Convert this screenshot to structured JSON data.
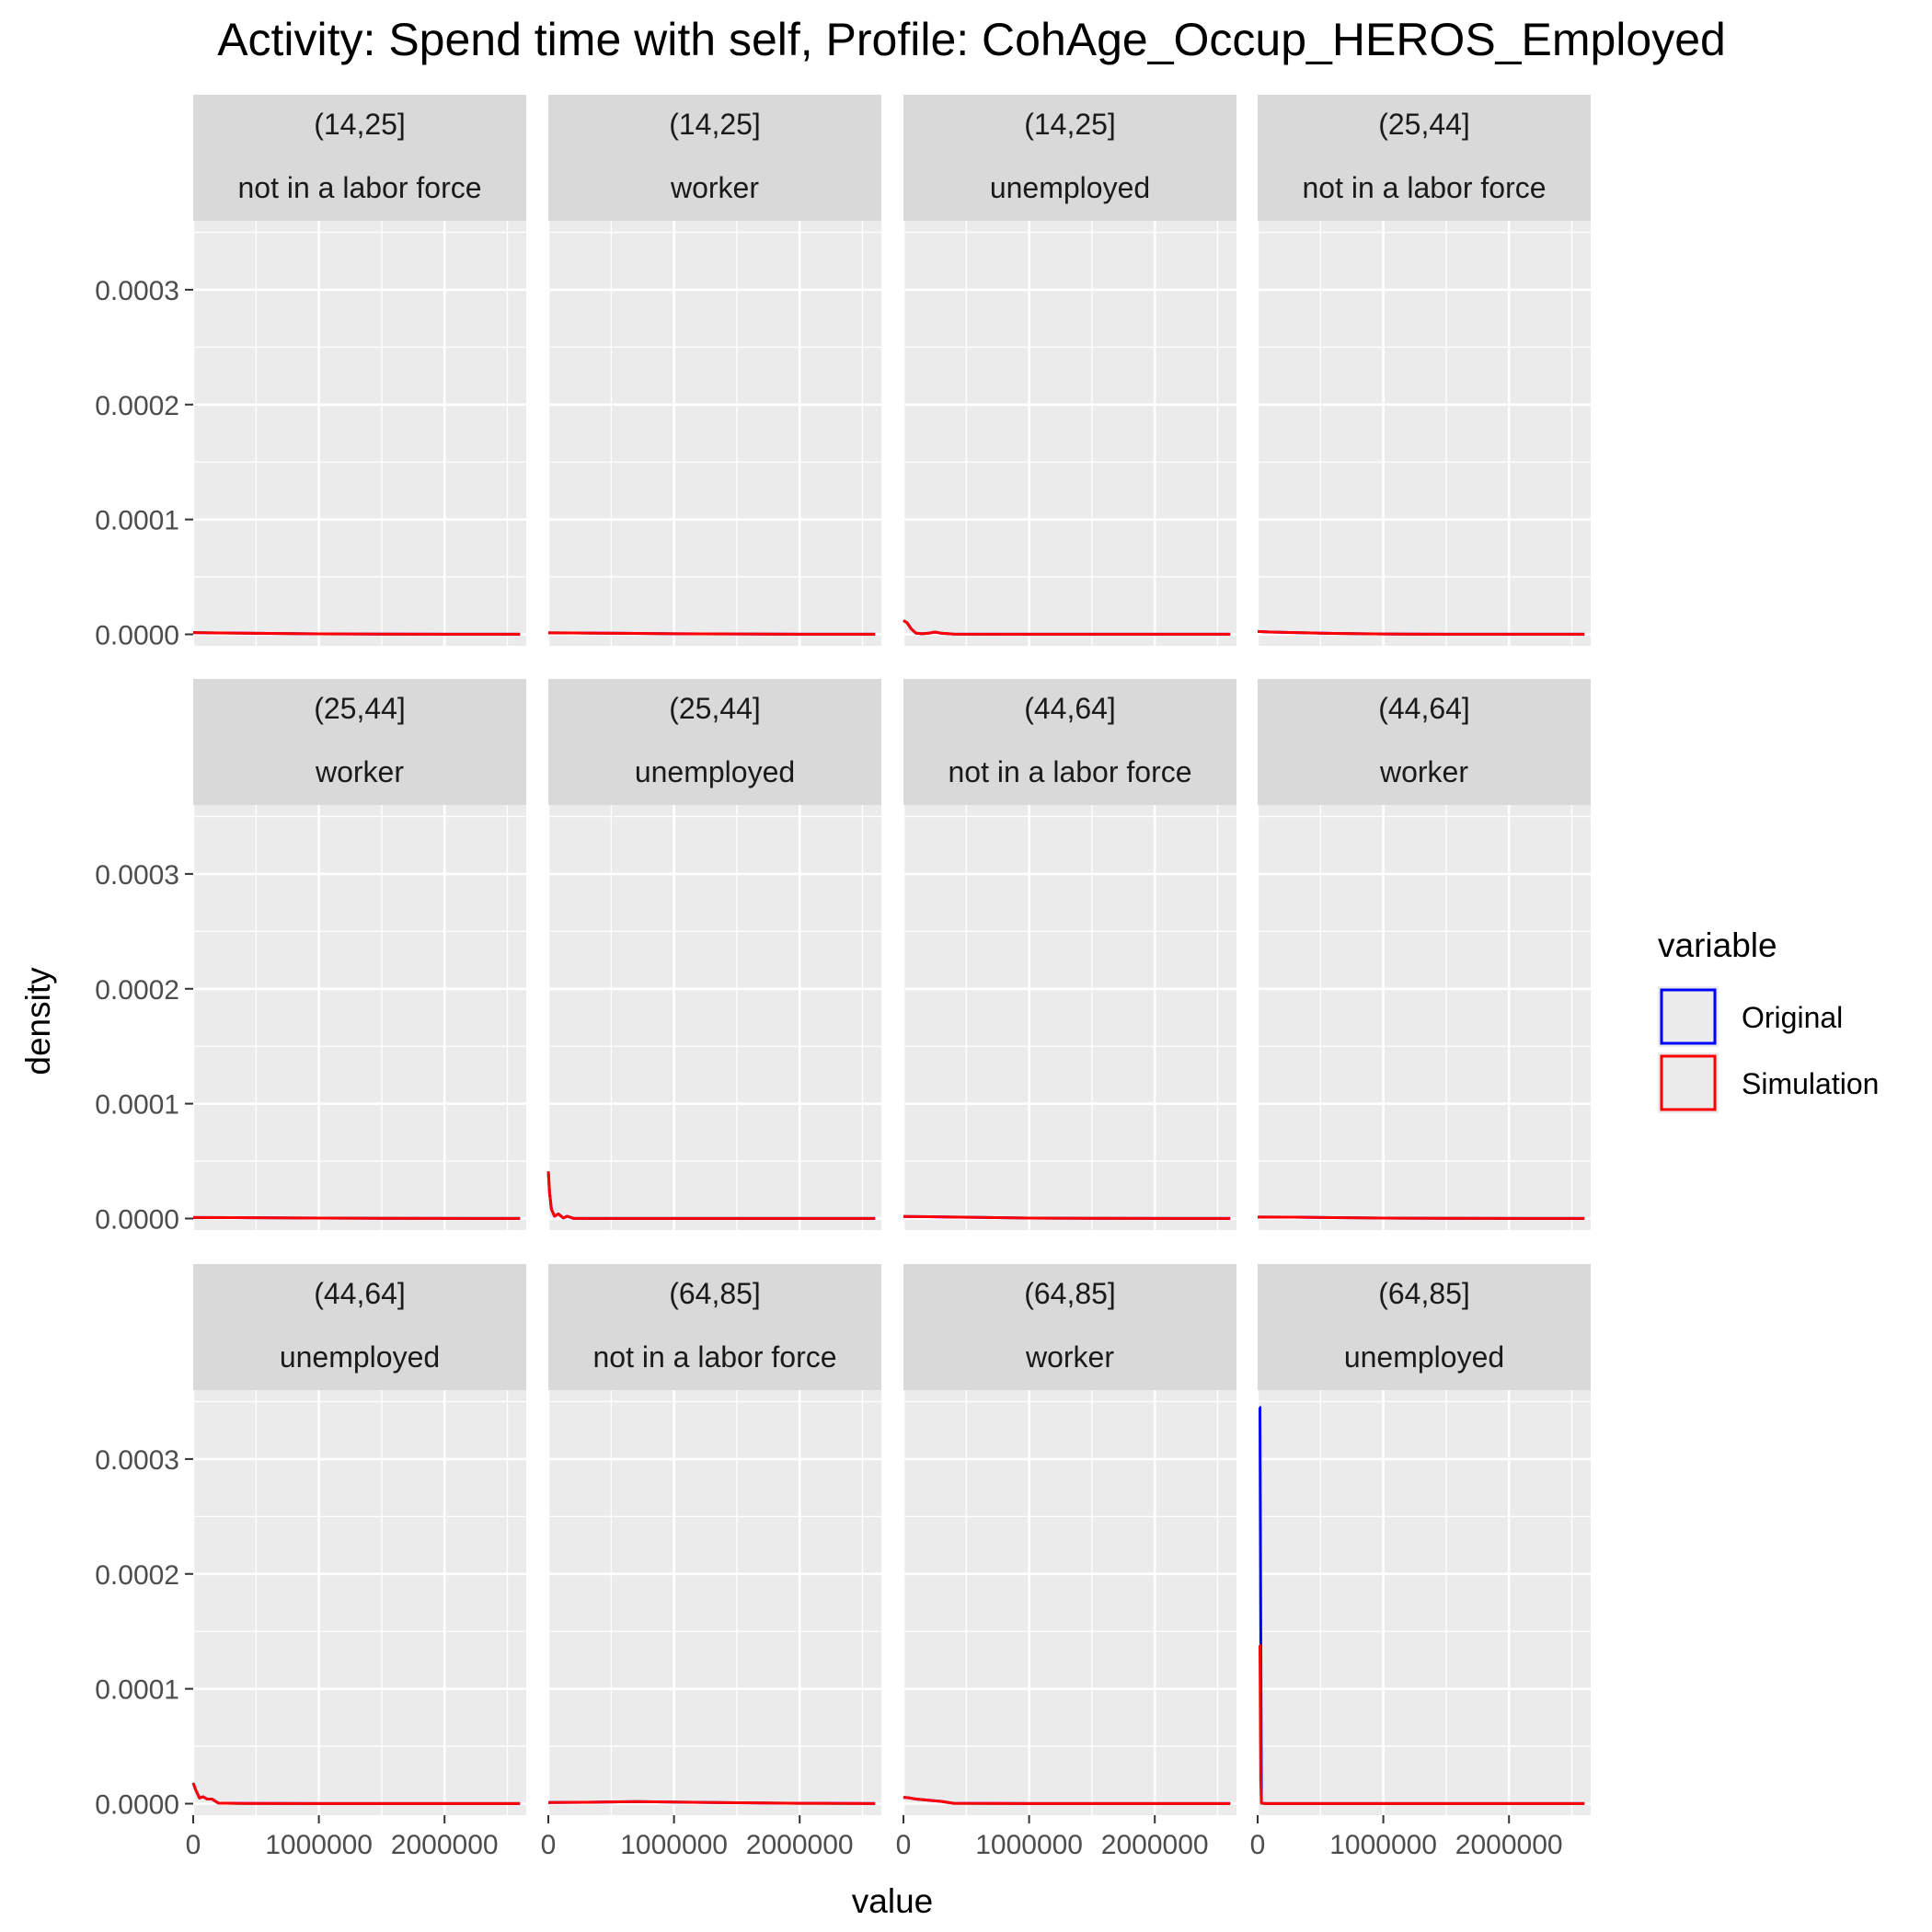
{
  "chart_data": {
    "type": "line",
    "title": "Activity: Spend time with self, Profile: CohAge_Occup_HEROS_Employed",
    "xlabel": "value",
    "ylabel": "density",
    "xlim": [
      0,
      2650000
    ],
    "ylim": [
      -1e-05,
      0.00036
    ],
    "x_ticks": [
      0,
      1000000,
      2000000
    ],
    "x_tick_labels": [
      "0",
      "1000000",
      "2000000"
    ],
    "y_ticks": [
      0,
      0.0001,
      0.0002,
      0.0003
    ],
    "y_tick_labels": [
      "0.0000",
      "0.0001",
      "0.0002",
      "0.0003"
    ],
    "grid": true,
    "legend": {
      "title": "variable",
      "position": "right",
      "entries": [
        {
          "label": "Original",
          "color": "#0000ff"
        },
        {
          "label": "Simulation",
          "color": "#ff0000"
        }
      ]
    },
    "facets": [
      {
        "age": "(14,25]",
        "occupation": "not in a labor force",
        "series": [
          {
            "name": "Original",
            "x": [
              0,
              200000,
              600000,
              1000000,
              1500000,
              2000000,
              2600000
            ],
            "y": [
              1.5e-06,
              1.2e-06,
              8e-07,
              4e-07,
              2e-07,
              1e-07,
              1e-07
            ]
          },
          {
            "name": "Simulation",
            "x": [
              0,
              200000,
              600000,
              1000000,
              1500000,
              2000000,
              2600000
            ],
            "y": [
              1.5e-06,
              1.2e-06,
              8e-07,
              4e-07,
              2e-07,
              1e-07,
              1e-07
            ]
          }
        ]
      },
      {
        "age": "(14,25]",
        "occupation": "worker",
        "series": [
          {
            "name": "Original",
            "x": [
              0,
              200000,
              600000,
              1000000,
              1500000,
              2000000,
              2600000
            ],
            "y": [
              1.3e-06,
              1.2e-06,
              9e-07,
              5e-07,
              3e-07,
              1e-07,
              1e-07
            ]
          },
          {
            "name": "Simulation",
            "x": [
              0,
              200000,
              600000,
              1000000,
              1500000,
              2000000,
              2600000
            ],
            "y": [
              1.3e-06,
              1.2e-06,
              9e-07,
              5e-07,
              3e-07,
              1e-07,
              1e-07
            ]
          }
        ]
      },
      {
        "age": "(14,25]",
        "occupation": "unemployed",
        "series": [
          {
            "name": "Original",
            "x": [
              0,
              30000,
              60000,
              100000,
              150000,
              200000,
              250000,
              300000,
              400000,
              1000000,
              2600000
            ],
            "y": [
              1.2e-05,
              1e-05,
              5e-06,
              1e-06,
              5e-07,
              1e-06,
              2e-06,
              1e-06,
              2e-07,
              1e-07,
              1e-07
            ]
          },
          {
            "name": "Simulation",
            "x": [
              0,
              30000,
              60000,
              100000,
              150000,
              200000,
              250000,
              300000,
              400000,
              1000000,
              2600000
            ],
            "y": [
              1.2e-05,
              1e-05,
              5e-06,
              1e-06,
              5e-07,
              1e-06,
              2e-06,
              1e-06,
              2e-07,
              1e-07,
              1e-07
            ]
          }
        ]
      },
      {
        "age": "(25,44]",
        "occupation": "not in a labor force",
        "series": [
          {
            "name": "Original",
            "x": [
              0,
              100000,
              300000,
              600000,
              1000000,
              1500000,
              2600000
            ],
            "y": [
              2.5e-06,
              2e-06,
              1.5e-06,
              8e-07,
              3e-07,
              1e-07,
              1e-07
            ]
          },
          {
            "name": "Simulation",
            "x": [
              0,
              100000,
              300000,
              600000,
              1000000,
              1500000,
              2600000
            ],
            "y": [
              2.5e-06,
              2e-06,
              1.5e-06,
              8e-07,
              3e-07,
              1e-07,
              1e-07
            ]
          }
        ]
      },
      {
        "age": "(25,44]",
        "occupation": "worker",
        "series": [
          {
            "name": "Original",
            "x": [
              0,
              300000,
              800000,
              1500000,
              2600000
            ],
            "y": [
              9e-07,
              8e-07,
              5e-07,
              2e-07,
              1e-07
            ]
          },
          {
            "name": "Simulation",
            "x": [
              0,
              300000,
              800000,
              1500000,
              2600000
            ],
            "y": [
              9e-07,
              8e-07,
              5e-07,
              2e-07,
              1e-07
            ]
          }
        ]
      },
      {
        "age": "(25,44]",
        "occupation": "unemployed",
        "series": [
          {
            "name": "Original",
            "x": [
              0,
              10000,
              25000,
              50000,
              80000,
              120000,
              150000,
              200000,
              400000,
              1000000,
              2600000
            ],
            "y": [
              4.1e-05,
              2.2e-05,
              8e-06,
              2e-06,
              4e-06,
              5e-07,
              2e-06,
              2e-07,
              1e-07,
              1e-07,
              1e-07
            ]
          },
          {
            "name": "Simulation",
            "x": [
              0,
              10000,
              25000,
              50000,
              80000,
              120000,
              150000,
              200000,
              400000,
              1000000,
              2600000
            ],
            "y": [
              4.1e-05,
              2.2e-05,
              8e-06,
              2e-06,
              4e-06,
              5e-07,
              2e-06,
              2e-07,
              1e-07,
              1e-07,
              1e-07
            ]
          }
        ]
      },
      {
        "age": "(44,64]",
        "occupation": "not in a labor force",
        "series": [
          {
            "name": "Original",
            "x": [
              0,
              200000,
              600000,
              1000000,
              1500000,
              2600000
            ],
            "y": [
              1.8e-06,
              1.6e-06,
              1e-06,
              4e-07,
              2e-07,
              1e-07
            ]
          },
          {
            "name": "Simulation",
            "x": [
              0,
              200000,
              600000,
              1000000,
              1500000,
              2600000
            ],
            "y": [
              1.8e-06,
              1.6e-06,
              1e-06,
              4e-07,
              2e-07,
              1e-07
            ]
          }
        ]
      },
      {
        "age": "(44,64]",
        "occupation": "worker",
        "series": [
          {
            "name": "Original",
            "x": [
              0,
              300000,
              600000,
              1000000,
              1500000,
              2600000
            ],
            "y": [
              1.3e-06,
              1.2e-06,
              8e-07,
              4e-07,
              2e-07,
              1e-07
            ]
          },
          {
            "name": "Simulation",
            "x": [
              0,
              300000,
              600000,
              1000000,
              1500000,
              2600000
            ],
            "y": [
              1.3e-06,
              1.2e-06,
              8e-07,
              4e-07,
              2e-07,
              1e-07
            ]
          }
        ]
      },
      {
        "age": "(44,64]",
        "occupation": "unemployed",
        "series": [
          {
            "name": "Original",
            "x": [
              0,
              20000,
              50000,
              80000,
              110000,
              150000,
              200000,
              400000,
              1000000,
              2600000
            ],
            "y": [
              1.8e-05,
              1.2e-05,
              5e-06,
              6e-06,
              4e-06,
              4e-06,
              5e-07,
              2e-07,
              1e-07,
              1e-07
            ]
          },
          {
            "name": "Simulation",
            "x": [
              0,
              20000,
              50000,
              80000,
              110000,
              150000,
              200000,
              400000,
              1000000,
              2600000
            ],
            "y": [
              1.8e-05,
              1.2e-05,
              5e-06,
              6e-06,
              4e-06,
              4e-06,
              5e-07,
              2e-07,
              1e-07,
              1e-07
            ]
          }
        ]
      },
      {
        "age": "(64,85]",
        "occupation": "not in a labor force",
        "series": [
          {
            "name": "Original",
            "x": [
              0,
              300000,
              700000,
              1000000,
              1500000,
              2000000,
              2600000
            ],
            "y": [
              1e-06,
              1.2e-06,
              1.8e-06,
              1.4e-06,
              8e-07,
              3e-07,
              1e-07
            ]
          },
          {
            "name": "Simulation",
            "x": [
              0,
              300000,
              700000,
              1000000,
              1500000,
              2000000,
              2600000
            ],
            "y": [
              1e-06,
              1.2e-06,
              1.8e-06,
              1.4e-06,
              8e-07,
              3e-07,
              1e-07
            ]
          }
        ]
      },
      {
        "age": "(64,85]",
        "occupation": "worker",
        "series": [
          {
            "name": "Original",
            "x": [
              0,
              50000,
              100000,
              200000,
              300000,
              400000,
              1000000,
              2600000
            ],
            "y": [
              5.5e-06,
              5e-06,
              4e-06,
              3e-06,
              2e-06,
              3e-07,
              1e-07,
              1e-07
            ]
          },
          {
            "name": "Simulation",
            "x": [
              0,
              50000,
              100000,
              200000,
              300000,
              400000,
              1000000,
              2600000
            ],
            "y": [
              5.5e-06,
              5e-06,
              4e-06,
              3e-06,
              2e-06,
              3e-07,
              1e-07,
              1e-07
            ]
          }
        ]
      },
      {
        "age": "(64,85]",
        "occupation": "unemployed",
        "series": [
          {
            "name": "Original",
            "x": [
              15000,
              18000,
              30000,
              60000,
              1000000,
              2600000
            ],
            "y": [
              0.000345,
              0.000345,
              5e-07,
              1e-07,
              1e-07,
              1e-07
            ]
          },
          {
            "name": "Simulation",
            "x": [
              15000,
              18000,
              25000,
              30000,
              60000,
              1000000,
              2600000
            ],
            "y": [
              0.000138,
              0.000138,
              2e-05,
              5e-07,
              1e-07,
              1e-07,
              1e-07
            ]
          }
        ]
      }
    ]
  }
}
